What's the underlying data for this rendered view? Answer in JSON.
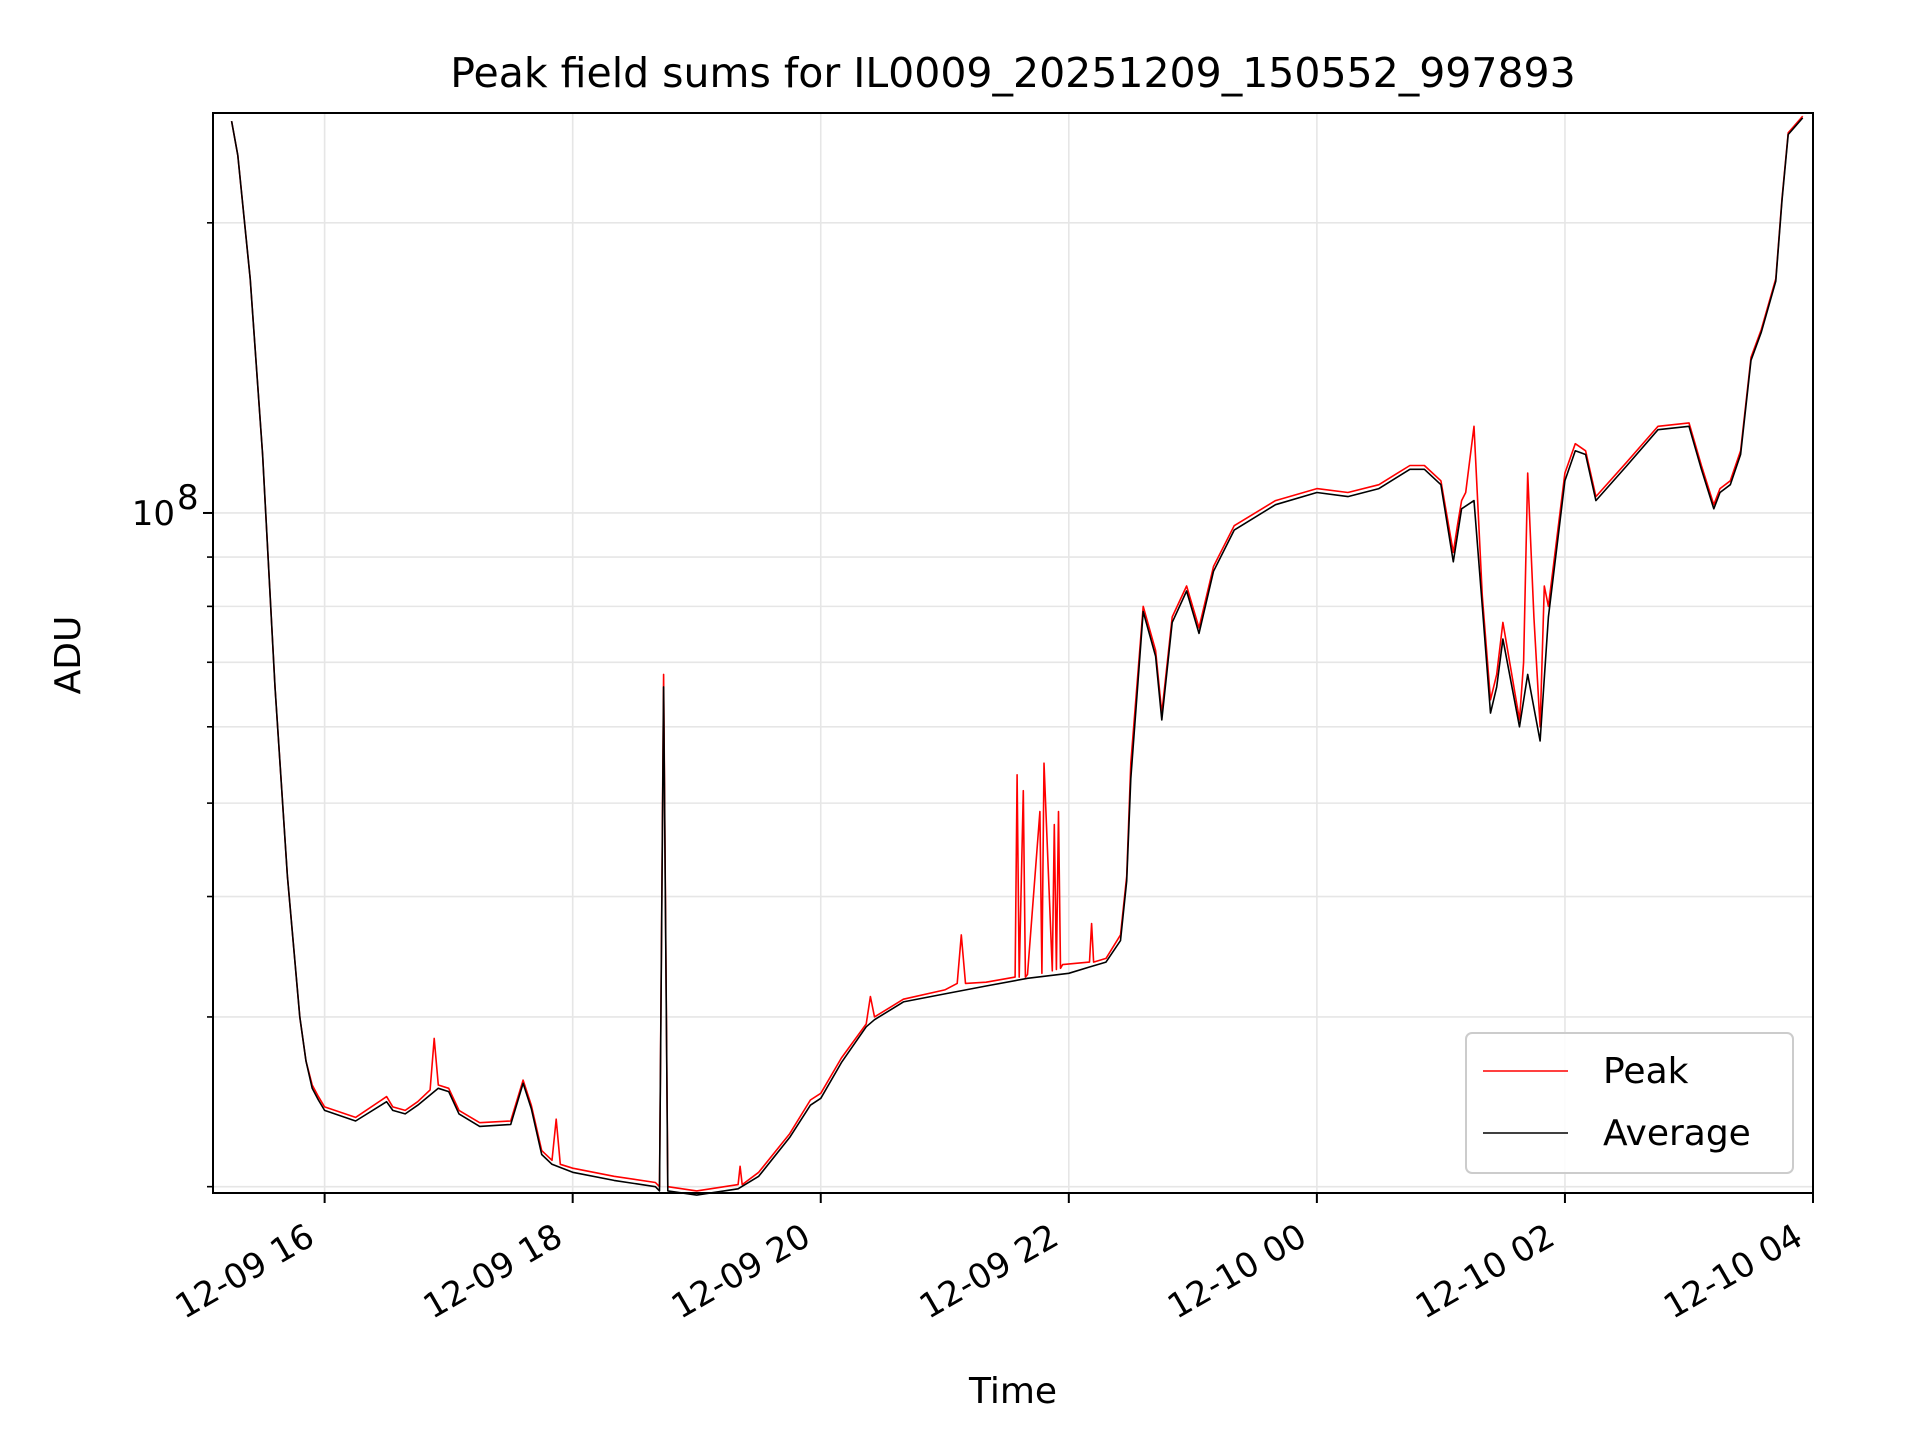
{
  "chart_data": {
    "type": "line",
    "title": "Peak field sums for IL0009_20251209_150552_997893",
    "xlabel": "Time",
    "ylabel": "ADU",
    "yscale": "log",
    "ylim": [
      19700000,
      260000000
    ],
    "xlim": [
      "2025-12-09 15:06",
      "2025-12-10 04:00"
    ],
    "grid": true,
    "legend": "lower-right",
    "xticks": [
      {
        "value": "2025-12-09 16:00",
        "label": "12-09 16"
      },
      {
        "value": "2025-12-09 18:00",
        "label": "12-09 18"
      },
      {
        "value": "2025-12-09 20:00",
        "label": "12-09 20"
      },
      {
        "value": "2025-12-09 22:00",
        "label": "12-09 22"
      },
      {
        "value": "2025-12-10 00:00",
        "label": "12-10 00"
      },
      {
        "value": "2025-12-10 02:00",
        "label": "12-10 02"
      },
      {
        "value": "2025-12-10 04:00",
        "label": "12-10 04"
      }
    ],
    "yticks_major": [
      {
        "value": 100000000,
        "base": "10",
        "exp": "8"
      }
    ],
    "yticks_minor": [
      20000000,
      30000000,
      40000000,
      50000000,
      60000000,
      70000000,
      80000000,
      90000000,
      200000000
    ],
    "series": [
      {
        "name": "Peak",
        "color": "#ff0000",
        "x": [
          "2025-12-09 15:15",
          "2025-12-09 15:18",
          "2025-12-09 15:24",
          "2025-12-09 15:30",
          "2025-12-09 15:36",
          "2025-12-09 15:42",
          "2025-12-09 15:48",
          "2025-12-09 15:51",
          "2025-12-09 15:54",
          "2025-12-09 15:57",
          "2025-12-09 16:00",
          "2025-12-09 16:15",
          "2025-12-09 16:30",
          "2025-12-09 16:33",
          "2025-12-09 16:39",
          "2025-12-09 16:45",
          "2025-12-09 16:51",
          "2025-12-09 16:53",
          "2025-12-09 16:55",
          "2025-12-09 17:00",
          "2025-12-09 17:05",
          "2025-12-09 17:15",
          "2025-12-09 17:30",
          "2025-12-09 17:36",
          "2025-12-09 17:40",
          "2025-12-09 17:45",
          "2025-12-09 17:50",
          "2025-12-09 17:52",
          "2025-12-09 17:54",
          "2025-12-09 18:00",
          "2025-12-09 18:20",
          "2025-12-09 18:40",
          "2025-12-09 18:42",
          "2025-12-09 18:44",
          "2025-12-09 18:46",
          "2025-12-09 19:00",
          "2025-12-09 19:20",
          "2025-12-09 19:21",
          "2025-12-09 19:22",
          "2025-12-09 19:30",
          "2025-12-09 19:45",
          "2025-12-09 19:55",
          "2025-12-09 20:00",
          "2025-12-09 20:10",
          "2025-12-09 20:22",
          "2025-12-09 20:24",
          "2025-12-09 20:26",
          "2025-12-09 20:40",
          "2025-12-09 21:00",
          "2025-12-09 21:06",
          "2025-12-09 21:08",
          "2025-12-09 21:10",
          "2025-12-09 21:20",
          "2025-12-09 21:34",
          "2025-12-09 21:35",
          "2025-12-09 21:36",
          "2025-12-09 21:38",
          "2025-12-09 21:39",
          "2025-12-09 21:40",
          "2025-12-09 21:46",
          "2025-12-09 21:47",
          "2025-12-09 21:48",
          "2025-12-09 21:52",
          "2025-12-09 21:53",
          "2025-12-09 21:54",
          "2025-12-09 21:55",
          "2025-12-09 21:56",
          "2025-12-09 21:57",
          "2025-12-09 22:10",
          "2025-12-09 22:11",
          "2025-12-09 22:12",
          "2025-12-09 22:18",
          "2025-12-09 22:25",
          "2025-12-09 22:28",
          "2025-12-09 22:30",
          "2025-12-09 22:36",
          "2025-12-09 22:42",
          "2025-12-09 22:45",
          "2025-12-09 22:50",
          "2025-12-09 22:57",
          "2025-12-09 23:03",
          "2025-12-09 23:10",
          "2025-12-09 23:20",
          "2025-12-09 23:40",
          "2025-12-10 00:00",
          "2025-12-10 00:15",
          "2025-12-10 00:30",
          "2025-12-10 00:45",
          "2025-12-10 00:52",
          "2025-12-10 01:00",
          "2025-12-10 01:06",
          "2025-12-10 01:08",
          "2025-12-10 01:10",
          "2025-12-10 01:12",
          "2025-12-10 01:16",
          "2025-12-10 01:20",
          "2025-12-10 01:24",
          "2025-12-10 01:27",
          "2025-12-10 01:30",
          "2025-12-10 01:38",
          "2025-12-10 01:40",
          "2025-12-10 01:42",
          "2025-12-10 01:45",
          "2025-12-10 01:48",
          "2025-12-10 01:50",
          "2025-12-10 01:52",
          "2025-12-10 02:00",
          "2025-12-10 02:05",
          "2025-12-10 02:10",
          "2025-12-10 02:15",
          "2025-12-10 02:30",
          "2025-12-10 02:45",
          "2025-12-10 03:00",
          "2025-12-10 03:06",
          "2025-12-10 03:12",
          "2025-12-10 03:15",
          "2025-12-10 03:20",
          "2025-12-10 03:25",
          "2025-12-10 03:30",
          "2025-12-10 03:35",
          "2025-12-10 03:42",
          "2025-12-10 03:45",
          "2025-12-10 03:48",
          "2025-12-10 03:55"
        ],
        "values": [
          255000000,
          235000000,
          175000000,
          115000000,
          66000000,
          42000000,
          30000000,
          27000000,
          25500000,
          24800000,
          24200000,
          23600000,
          24800000,
          24200000,
          24000000,
          24500000,
          25200000,
          28500000,
          25500000,
          25300000,
          24000000,
          23300000,
          23400000,
          25800000,
          24300000,
          21800000,
          21300000,
          23500000,
          21100000,
          20900000,
          20500000,
          20200000,
          20000000,
          68000000,
          20000000,
          19800000,
          20100000,
          21000000,
          20100000,
          20700000,
          22700000,
          24600000,
          25000000,
          27200000,
          29500000,
          31500000,
          30000000,
          31300000,
          32000000,
          32500000,
          36500000,
          32500000,
          32600000,
          33000000,
          53500000,
          33000000,
          51500000,
          33000000,
          33200000,
          49000000,
          33300000,
          55000000,
          33500000,
          47500000,
          33600000,
          49000000,
          33700000,
          34000000,
          34200000,
          37500000,
          34200000,
          34500000,
          36500000,
          42000000,
          55000000,
          80000000,
          72000000,
          62000000,
          78000000,
          84000000,
          76000000,
          88000000,
          97000000,
          103000000,
          106000000,
          105000000,
          107000000,
          112000000,
          112000000,
          108000000,
          91000000,
          97000000,
          103000000,
          105000000,
          123000000,
          82000000,
          64000000,
          68000000,
          77000000,
          61000000,
          70000000,
          110000000,
          78000000,
          60000000,
          84000000,
          80000000,
          110000000,
          118000000,
          116000000,
          104000000,
          113000000,
          123000000,
          124000000,
          112000000,
          102000000,
          106000000,
          108000000,
          116000000,
          145000000,
          155000000,
          175000000,
          212000000,
          248000000,
          258000000
        ]
      },
      {
        "name": "Average",
        "color": "#000000",
        "x": [
          "2025-12-09 15:15",
          "2025-12-09 15:18",
          "2025-12-09 15:24",
          "2025-12-09 15:30",
          "2025-12-09 15:36",
          "2025-12-09 15:42",
          "2025-12-09 15:48",
          "2025-12-09 15:51",
          "2025-12-09 15:54",
          "2025-12-09 15:57",
          "2025-12-09 16:00",
          "2025-12-09 16:15",
          "2025-12-09 16:30",
          "2025-12-09 16:33",
          "2025-12-09 16:39",
          "2025-12-09 16:45",
          "2025-12-09 16:55",
          "2025-12-09 17:00",
          "2025-12-09 17:05",
          "2025-12-09 17:15",
          "2025-12-09 17:30",
          "2025-12-09 17:36",
          "2025-12-09 17:40",
          "2025-12-09 17:45",
          "2025-12-09 17:50",
          "2025-12-09 18:00",
          "2025-12-09 18:20",
          "2025-12-09 18:40",
          "2025-12-09 18:42",
          "2025-12-09 18:44",
          "2025-12-09 18:46",
          "2025-12-09 19:00",
          "2025-12-09 19:20",
          "2025-12-09 19:30",
          "2025-12-09 19:45",
          "2025-12-09 19:55",
          "2025-12-09 20:00",
          "2025-12-09 20:10",
          "2025-12-09 20:22",
          "2025-12-09 20:26",
          "2025-12-09 20:40",
          "2025-12-09 21:00",
          "2025-12-09 21:20",
          "2025-12-09 21:40",
          "2025-12-09 22:00",
          "2025-12-09 22:10",
          "2025-12-09 22:18",
          "2025-12-09 22:25",
          "2025-12-09 22:28",
          "2025-12-09 22:30",
          "2025-12-09 22:36",
          "2025-12-09 22:42",
          "2025-12-09 22:45",
          "2025-12-09 22:50",
          "2025-12-09 22:57",
          "2025-12-09 23:03",
          "2025-12-09 23:10",
          "2025-12-09 23:20",
          "2025-12-09 23:40",
          "2025-12-10 00:00",
          "2025-12-10 00:15",
          "2025-12-10 00:30",
          "2025-12-10 00:45",
          "2025-12-10 00:52",
          "2025-12-10 01:00",
          "2025-12-10 01:06",
          "2025-12-10 01:10",
          "2025-12-10 01:16",
          "2025-12-10 01:20",
          "2025-12-10 01:24",
          "2025-12-10 01:27",
          "2025-12-10 01:30",
          "2025-12-10 01:38",
          "2025-12-10 01:42",
          "2025-12-10 01:48",
          "2025-12-10 01:52",
          "2025-12-10 02:00",
          "2025-12-10 02:05",
          "2025-12-10 02:10",
          "2025-12-10 02:15",
          "2025-12-10 02:30",
          "2025-12-10 02:45",
          "2025-12-10 03:00",
          "2025-12-10 03:06",
          "2025-12-10 03:12",
          "2025-12-10 03:15",
          "2025-12-10 03:20",
          "2025-12-10 03:25",
          "2025-12-10 03:30",
          "2025-12-10 03:35",
          "2025-12-10 03:42",
          "2025-12-10 03:45",
          "2025-12-10 03:48",
          "2025-12-10 03:55"
        ],
        "values": [
          255000000,
          235000000,
          175000000,
          115000000,
          66000000,
          42000000,
          30000000,
          27000000,
          25300000,
          24600000,
          24000000,
          23400000,
          24500000,
          24000000,
          23800000,
          24300000,
          25300000,
          25100000,
          23800000,
          23100000,
          23200000,
          25600000,
          24100000,
          21600000,
          21100000,
          20700000,
          20300000,
          20000000,
          19800000,
          66000000,
          19800000,
          19600000,
          19900000,
          20500000,
          22500000,
          24300000,
          24700000,
          26900000,
          29300000,
          29800000,
          31100000,
          31700000,
          32300000,
          32900000,
          33300000,
          33800000,
          34200000,
          36000000,
          41500000,
          53000000,
          79000000,
          71000000,
          61000000,
          77000000,
          83000000,
          75000000,
          87000000,
          96000000,
          102000000,
          105000000,
          104000000,
          106000000,
          111000000,
          111000000,
          107000000,
          89000000,
          101000000,
          103000000,
          80000000,
          62000000,
          66000000,
          74000000,
          60000000,
          68000000,
          58000000,
          78000000,
          108000000,
          116000000,
          115000000,
          103000000,
          112000000,
          122000000,
          123000000,
          111000000,
          101000000,
          105000000,
          107000000,
          115000000,
          144000000,
          154000000,
          174000000,
          211000000,
          247000000,
          257000000
        ]
      }
    ]
  }
}
